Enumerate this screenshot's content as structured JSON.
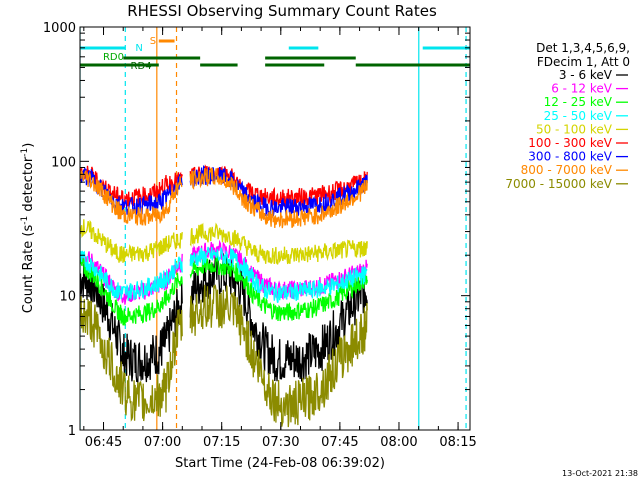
{
  "chart_data": {
    "type": "line",
    "title": "RHESSI Observing Summary Count Rates",
    "xlabel": "Start Time (24-Feb-08 06:39:02)",
    "ylabel_main": "Count Rate (s",
    "ylabel_sup1": "-1",
    "ylabel_mid": " detector",
    "ylabel_sup2": "-1",
    "ylabel_end": ")",
    "y_scale": "log",
    "ylim": [
      1,
      1000
    ],
    "x_unit": "minutes after 06:39:02",
    "xlim": [
      0,
      99
    ],
    "x_ticks": [
      {
        "label": "06:45",
        "min": 5.97
      },
      {
        "label": "07:00",
        "min": 20.97
      },
      {
        "label": "07:15",
        "min": 35.97
      },
      {
        "label": "07:30",
        "min": 50.97
      },
      {
        "label": "07:45",
        "min": 65.97
      },
      {
        "label": "08:00",
        "min": 80.97
      },
      {
        "label": "08:15",
        "min": 95.97
      }
    ],
    "y_ticks": [
      {
        "label": "1",
        "value": 1
      },
      {
        "label": "10",
        "value": 10
      },
      {
        "label": "100",
        "value": 100
      },
      {
        "label": "1000",
        "value": 1000
      }
    ],
    "timestamp": "13-Oct-2021 21:38",
    "legend": {
      "placement": "right",
      "header": [
        "Det 1,3,4,5,6,9,",
        "FDecim 1, Att 0"
      ]
    },
    "flags": [
      {
        "label": "N",
        "color": "#00e5ee",
        "segments": [
          [
            0,
            11.5
          ],
          [
            53,
            60.5
          ],
          [
            87,
            99
          ]
        ]
      },
      {
        "label": "S",
        "color": "#ff8800",
        "segments": [
          [
            20,
            24
          ]
        ]
      },
      {
        "label": "RD0",
        "color": "#00aa00"
      },
      {
        "label": "RD4",
        "color": "#006400",
        "segments": [
          [
            0,
            20
          ],
          [
            20,
            30.5
          ],
          [
            30.5,
            40
          ],
          [
            40,
            47
          ],
          [
            47,
            62
          ],
          [
            62,
            70
          ],
          [
            70,
            99
          ]
        ]
      }
    ],
    "markers": [
      {
        "color": "#00e5ee",
        "style": "solid",
        "x": 0
      },
      {
        "color": "#00e5ee",
        "style": "dashed",
        "x": 11.5
      },
      {
        "color": "#00e5ee",
        "style": "solid",
        "x": 86
      },
      {
        "color": "#00e5ee",
        "style": "dashed",
        "x": 98
      },
      {
        "color": "#ff8800",
        "style": "solid",
        "x": 19.5
      },
      {
        "color": "#ff8800",
        "style": "dashed",
        "x": 24.5
      }
    ],
    "gaps": [
      [
        26,
        28
      ]
    ],
    "series": [
      {
        "name": "3 - 6 keV",
        "color": "#000000",
        "points": [
          [
            0,
            14
          ],
          [
            3,
            12.5
          ],
          [
            6,
            8.5
          ],
          [
            9,
            5.2
          ],
          [
            11,
            3.6
          ],
          [
            14,
            3.3
          ],
          [
            17,
            3.4
          ],
          [
            20,
            3.8
          ],
          [
            22,
            4.6
          ],
          [
            25,
            8
          ],
          [
            28,
            10
          ],
          [
            31,
            13
          ],
          [
            34,
            14.5
          ],
          [
            38,
            14
          ],
          [
            41,
            11
          ],
          [
            44,
            6
          ],
          [
            47,
            4
          ],
          [
            50,
            3.3
          ],
          [
            53,
            3.4
          ],
          [
            56,
            3.4
          ],
          [
            59,
            3.7
          ],
          [
            62,
            4.2
          ],
          [
            65,
            5.5
          ],
          [
            68,
            7.5
          ],
          [
            71,
            10
          ],
          [
            73,
            11.5
          ]
        ]
      },
      {
        "name": "6 - 12 keV",
        "color": "#ff00ff",
        "points": [
          [
            0,
            20
          ],
          [
            3,
            18
          ],
          [
            6,
            14
          ],
          [
            9,
            11
          ],
          [
            11,
            10
          ],
          [
            14,
            10.5
          ],
          [
            17,
            11
          ],
          [
            20,
            12
          ],
          [
            22,
            13
          ],
          [
            25,
            17
          ],
          [
            28,
            19
          ],
          [
            31,
            21
          ],
          [
            34,
            22
          ],
          [
            38,
            21
          ],
          [
            41,
            18
          ],
          [
            44,
            14
          ],
          [
            47,
            12
          ],
          [
            50,
            11
          ],
          [
            53,
            11
          ],
          [
            56,
            11.2
          ],
          [
            59,
            11.5
          ],
          [
            62,
            12
          ],
          [
            65,
            13
          ],
          [
            68,
            14
          ],
          [
            71,
            15
          ],
          [
            73,
            16
          ]
        ]
      },
      {
        "name": "12 - 25 keV",
        "color": "#00ff00",
        "points": [
          [
            0,
            17
          ],
          [
            3,
            14.5
          ],
          [
            6,
            11
          ],
          [
            9,
            8
          ],
          [
            11,
            7
          ],
          [
            14,
            7.2
          ],
          [
            17,
            7.5
          ],
          [
            20,
            8.3
          ],
          [
            22,
            9.5
          ],
          [
            25,
            13
          ],
          [
            28,
            15
          ],
          [
            31,
            16.5
          ],
          [
            34,
            17
          ],
          [
            38,
            16
          ],
          [
            41,
            14
          ],
          [
            44,
            10
          ],
          [
            47,
            8.3
          ],
          [
            50,
            7.5
          ],
          [
            53,
            7.5
          ],
          [
            56,
            7.8
          ],
          [
            59,
            8
          ],
          [
            62,
            8.6
          ],
          [
            65,
            9.5
          ],
          [
            68,
            11
          ],
          [
            71,
            12.5
          ],
          [
            73,
            13.5
          ]
        ]
      },
      {
        "name": "25 - 50 keV",
        "color": "#00ffff",
        "points": [
          [
            0,
            19
          ],
          [
            3,
            17
          ],
          [
            6,
            13.5
          ],
          [
            9,
            11
          ],
          [
            11,
            10.5
          ],
          [
            14,
            11
          ],
          [
            17,
            11.5
          ],
          [
            20,
            12.5
          ],
          [
            22,
            13.5
          ],
          [
            25,
            17
          ],
          [
            28,
            18.5
          ],
          [
            31,
            19.5
          ],
          [
            34,
            20
          ],
          [
            38,
            19.5
          ],
          [
            41,
            17
          ],
          [
            44,
            13
          ],
          [
            47,
            11
          ],
          [
            50,
            10.5
          ],
          [
            53,
            10.5
          ],
          [
            56,
            10.8
          ],
          [
            59,
            11
          ],
          [
            62,
            11.5
          ],
          [
            65,
            12
          ],
          [
            68,
            13
          ],
          [
            71,
            14
          ],
          [
            73,
            14.5
          ]
        ]
      },
      {
        "name": "50 - 100 keV",
        "color": "#d4d400",
        "points": [
          [
            0,
            33
          ],
          [
            3,
            30
          ],
          [
            6,
            25
          ],
          [
            9,
            21
          ],
          [
            11,
            20
          ],
          [
            14,
            20.5
          ],
          [
            17,
            21
          ],
          [
            20,
            22.5
          ],
          [
            22,
            24
          ],
          [
            25,
            26
          ],
          [
            28,
            28
          ],
          [
            31,
            29
          ],
          [
            34,
            29.5
          ],
          [
            38,
            28
          ],
          [
            41,
            25
          ],
          [
            44,
            21
          ],
          [
            47,
            20
          ],
          [
            50,
            19.8
          ],
          [
            53,
            20
          ],
          [
            56,
            20.2
          ],
          [
            59,
            20.5
          ],
          [
            62,
            21
          ],
          [
            65,
            21.5
          ],
          [
            68,
            22
          ],
          [
            71,
            22.5
          ],
          [
            73,
            23
          ]
        ]
      },
      {
        "name": "100 - 300 keV",
        "color": "#ff0000",
        "points": [
          [
            0,
            82
          ],
          [
            3,
            78
          ],
          [
            6,
            65
          ],
          [
            9,
            56
          ],
          [
            11,
            53
          ],
          [
            14,
            54
          ],
          [
            17,
            56
          ],
          [
            20,
            60
          ],
          [
            22,
            68
          ],
          [
            25,
            72
          ],
          [
            28,
            76
          ],
          [
            31,
            80
          ],
          [
            34,
            83
          ],
          [
            38,
            80
          ],
          [
            41,
            62
          ],
          [
            44,
            58
          ],
          [
            47,
            54
          ],
          [
            50,
            53
          ],
          [
            53,
            53.5
          ],
          [
            56,
            54
          ],
          [
            59,
            55
          ],
          [
            62,
            57
          ],
          [
            65,
            60
          ],
          [
            68,
            64
          ],
          [
            71,
            69
          ],
          [
            73,
            73
          ]
        ]
      },
      {
        "name": "300 - 800 keV",
        "color": "#0000ff",
        "points": [
          [
            0,
            80
          ],
          [
            3,
            74
          ],
          [
            6,
            60
          ],
          [
            9,
            50
          ],
          [
            11,
            46
          ],
          [
            14,
            46.5
          ],
          [
            17,
            47
          ],
          [
            20,
            49
          ],
          [
            22,
            54
          ],
          [
            25,
            68
          ],
          [
            28,
            74
          ],
          [
            31,
            78
          ],
          [
            34,
            79
          ],
          [
            38,
            74
          ],
          [
            41,
            60
          ],
          [
            44,
            50
          ],
          [
            47,
            46
          ],
          [
            50,
            45
          ],
          [
            53,
            45.5
          ],
          [
            56,
            46
          ],
          [
            59,
            47
          ],
          [
            62,
            49
          ],
          [
            65,
            53
          ],
          [
            68,
            58
          ],
          [
            71,
            64
          ],
          [
            73,
            70
          ]
        ]
      },
      {
        "name": "800 - 7000 keV",
        "color": "#ff8800",
        "points": [
          [
            0,
            80
          ],
          [
            3,
            72
          ],
          [
            6,
            58
          ],
          [
            9,
            45
          ],
          [
            11,
            40
          ],
          [
            14,
            39
          ],
          [
            17,
            38.5
          ],
          [
            20,
            40
          ],
          [
            22,
            44
          ],
          [
            25,
            66
          ],
          [
            28,
            72
          ],
          [
            31,
            76
          ],
          [
            34,
            77
          ],
          [
            38,
            70
          ],
          [
            41,
            55
          ],
          [
            44,
            45
          ],
          [
            47,
            39
          ],
          [
            50,
            37
          ],
          [
            53,
            37.5
          ],
          [
            56,
            38
          ],
          [
            59,
            39
          ],
          [
            62,
            41
          ],
          [
            65,
            45
          ],
          [
            68,
            51
          ],
          [
            71,
            58
          ],
          [
            73,
            65
          ]
        ]
      },
      {
        "name": "7000 - 15000 keV",
        "color": "#8b8b00",
        "points": [
          [
            0,
            7.5
          ],
          [
            3,
            6.5
          ],
          [
            6,
            4
          ],
          [
            9,
            2.6
          ],
          [
            11,
            2
          ],
          [
            14,
            1.6
          ],
          [
            17,
            1.6
          ],
          [
            20,
            1.8
          ],
          [
            22,
            2
          ],
          [
            25,
            5.5
          ],
          [
            28,
            7
          ],
          [
            31,
            8
          ],
          [
            34,
            8.5
          ],
          [
            38,
            8
          ],
          [
            41,
            6
          ],
          [
            44,
            3.5
          ],
          [
            47,
            2.2
          ],
          [
            50,
            1.6
          ],
          [
            53,
            1.5
          ],
          [
            56,
            1.6
          ],
          [
            59,
            1.8
          ],
          [
            62,
            2.2
          ],
          [
            65,
            3
          ],
          [
            68,
            4
          ],
          [
            71,
            5
          ],
          [
            73,
            6
          ]
        ]
      }
    ]
  }
}
